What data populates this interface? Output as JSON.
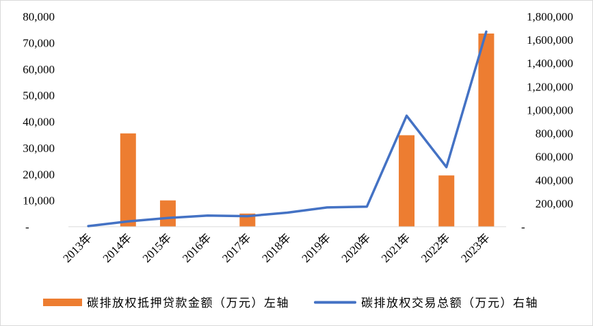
{
  "chart_data": {
    "type": "bar",
    "categories": [
      "2013年",
      "2014年",
      "2015年",
      "2016年",
      "2017年",
      "2018年",
      "2019年",
      "2020年",
      "2021年",
      "2022年",
      "2023年"
    ],
    "series": [
      {
        "name": "碳排放权抵押贷款金额（万元）左轴",
        "type": "bar",
        "axis": "left",
        "color": "#ED7D31",
        "values": [
          0,
          35500,
          10000,
          0,
          5000,
          0,
          0,
          0,
          34800,
          19500,
          73500
        ]
      },
      {
        "name": "碳排放权交易总额（万元）右轴",
        "type": "line",
        "axis": "right",
        "color": "#4472C4",
        "values": [
          5000,
          45000,
          75000,
          95000,
          90000,
          120000,
          165000,
          172000,
          950000,
          510000,
          1670000
        ]
      }
    ],
    "y_left": {
      "ylim": [
        0,
        80000
      ],
      "ticks": [
        0,
        10000,
        20000,
        30000,
        40000,
        50000,
        60000,
        70000,
        80000
      ],
      "tick_labels": [
        "-",
        "10,000",
        "20,000",
        "30,000",
        "40,000",
        "50,000",
        "60,000",
        "70,000",
        "80,000"
      ]
    },
    "y_right": {
      "ylim": [
        0,
        1800000
      ],
      "ticks": [
        0,
        200000,
        400000,
        600000,
        800000,
        1000000,
        1200000,
        1400000,
        1600000,
        1800000
      ],
      "tick_labels": [
        "-",
        "200,000",
        "400,000",
        "600,000",
        "800,000",
        "1,000,000",
        "1,200,000",
        "1,400,000",
        "1,600,000",
        "1,800,000"
      ]
    },
    "title": "",
    "xlabel": "",
    "grid": false,
    "legend_position": "bottom"
  }
}
